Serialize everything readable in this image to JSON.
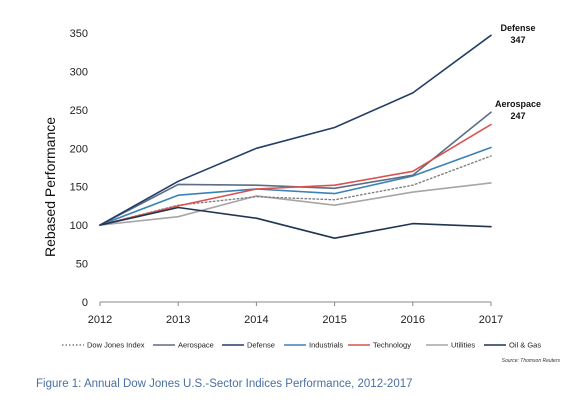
{
  "chart_data": {
    "type": "line",
    "ylabel": "Rebased Performance",
    "xlabel": "",
    "x": [
      "2012",
      "2013",
      "2014",
      "2015",
      "2016",
      "2017"
    ],
    "ylim": [
      0,
      350
    ],
    "yticks": [
      0,
      50,
      100,
      150,
      200,
      250,
      300,
      350
    ],
    "grid": false,
    "legend_position": "bottom",
    "series": [
      {
        "name": "Dow Jones Index",
        "color": "#7f7f7f",
        "dash": "dotted",
        "values": [
          100,
          126,
          137,
          133,
          152,
          190
        ]
      },
      {
        "name": "Aerospace",
        "color": "#5b6e86",
        "dash": "solid",
        "values": [
          100,
          153,
          152,
          148,
          165,
          247
        ]
      },
      {
        "name": "Defense",
        "color": "#243f66",
        "dash": "solid",
        "values": [
          100,
          157,
          200,
          227,
          272,
          347
        ]
      },
      {
        "name": "Industrials",
        "color": "#3a82b5",
        "dash": "solid",
        "values": [
          100,
          139,
          147,
          141,
          164,
          201
        ]
      },
      {
        "name": "Technology",
        "color": "#d9534f",
        "dash": "solid",
        "values": [
          100,
          125,
          147,
          152,
          170,
          231
        ]
      },
      {
        "name": "Utilities",
        "color": "#a6a6a6",
        "dash": "solid",
        "values": [
          100,
          111,
          138,
          126,
          143,
          155
        ]
      },
      {
        "name": "Oil & Gas",
        "color": "#1f3552",
        "dash": "solid",
        "values": [
          100,
          123,
          109,
          83,
          102,
          98
        ]
      }
    ],
    "annotations": [
      {
        "series": "Defense",
        "label": "Defense",
        "value": "347"
      },
      {
        "series": "Aerospace",
        "label": "Aerospace",
        "value": "247"
      }
    ],
    "source": "Source: Thomson Reuters"
  },
  "caption": "Figure 1: Annual Dow Jones U.S.-Sector Indices Performance, 2012-2017"
}
